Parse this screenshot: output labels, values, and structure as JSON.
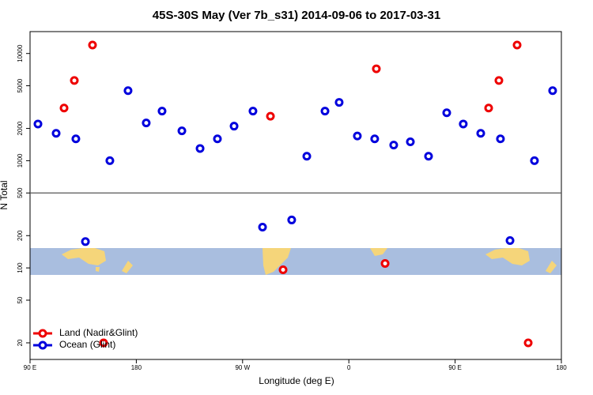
{
  "chart_data": {
    "type": "scatter",
    "title": "45S-30S May (Ver 7b_s31)   2014-09-06 to 2017-03-31",
    "x_label": "Longitude (deg E)",
    "y_label": "N Total",
    "log_y": true,
    "xlim": [
      90,
      540
    ],
    "ylim": [
      14,
      16000
    ],
    "xticks": [
      {
        "value": 90,
        "label": "90 E"
      },
      180,
      {
        "value": 270,
        "label": "90 W"
      },
      {
        "value": 360,
        "label": "0"
      },
      {
        "value": 450,
        "label": "90 E"
      },
      {
        "value": 540,
        "label": "180"
      }
    ],
    "yticks": [
      20,
      50,
      100,
      200,
      500,
      1000,
      2000,
      5000,
      10000
    ],
    "reference_line": 500,
    "legend_position": "bottom-left",
    "series": [
      {
        "name": "Land (Nadir&Glint)",
        "color": "#ee0000",
        "x": [
          118.8,
          127.5,
          142.9,
          152.3,
          293.6,
          304.3,
          383.3,
          390.7,
          478.4,
          487.1,
          502.5,
          511.9
        ],
        "values": [
          3100,
          5600,
          12000,
          20,
          2600,
          96,
          7200,
          110,
          3100,
          5600,
          12000,
          20
        ]
      },
      {
        "name": "Ocean (Glint)",
        "color": "#0000dd",
        "x": [
          96.7,
          112.1,
          128.8,
          136.9,
          157.6,
          173,
          188.4,
          201.8,
          218.6,
          234,
          248.7,
          262.8,
          278.8,
          286.9,
          311.6,
          324.4,
          339.8,
          351.8,
          367.2,
          381.9,
          398,
          412.1,
          427.5,
          442.9,
          456.9,
          471.7,
          488.4,
          496.5,
          517.2,
          532.6
        ],
        "values": [
          2200,
          1800,
          1600,
          176,
          1000,
          4500,
          2250,
          2900,
          1900,
          1300,
          1600,
          2100,
          2900,
          240,
          280,
          1100,
          2900,
          3500,
          1700,
          1600,
          1400,
          1500,
          1100,
          2800,
          2200,
          1800,
          1600,
          180,
          1000,
          4500
        ]
      }
    ]
  }
}
